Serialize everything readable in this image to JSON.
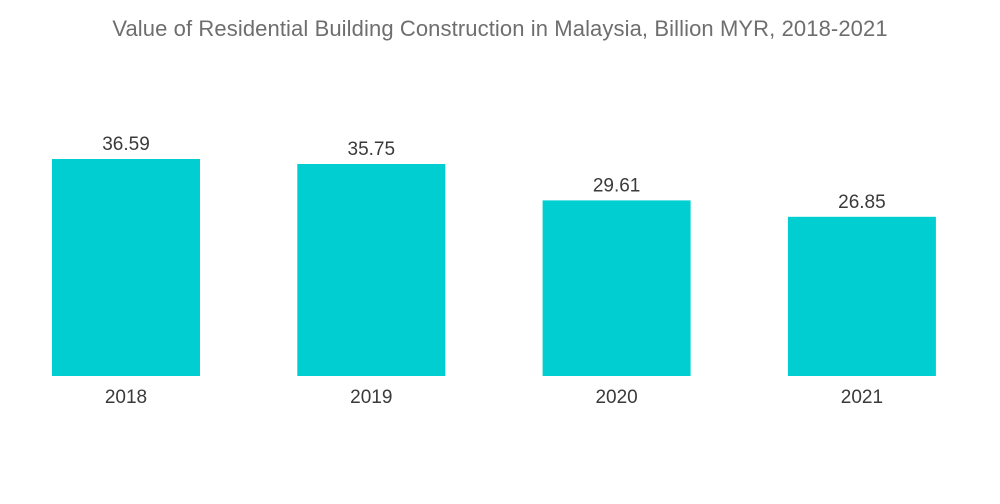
{
  "chart_data": {
    "type": "bar",
    "title": "Value of Residential Building Construction in Malaysia, Billion MYR, 2018-2021",
    "categories": [
      "2018",
      "2019",
      "2020",
      "2021"
    ],
    "values": [
      36.59,
      35.75,
      29.61,
      26.85
    ],
    "data_labels": [
      "36.59",
      "35.75",
      "29.61",
      "26.85"
    ],
    "bar_color": "#00ced1",
    "ylim": [
      0,
      36.59
    ],
    "grid": false,
    "legend": "none"
  }
}
